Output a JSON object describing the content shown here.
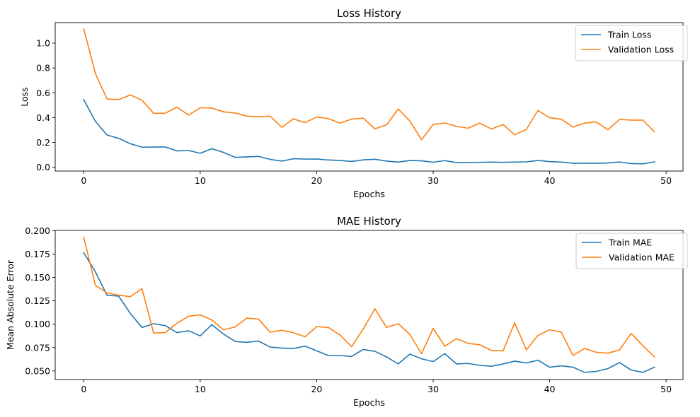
{
  "chart_data": [
    {
      "type": "line",
      "title": "Loss History",
      "xlabel": "Epochs",
      "ylabel": "Loss",
      "xlim": [
        -2.45,
        51.45
      ],
      "ylim": [
        -0.03,
        1.165
      ],
      "xticks": [
        0,
        10,
        20,
        30,
        40,
        50
      ],
      "yticks": [
        0.0,
        0.2,
        0.4,
        0.6,
        0.8,
        1.0
      ],
      "ytick_labels": [
        "0.0",
        "0.2",
        "0.4",
        "0.6",
        "0.8",
        "1.0"
      ],
      "grid": false,
      "legend_position": "top-right",
      "x": [
        0,
        1,
        2,
        3,
        4,
        5,
        6,
        7,
        8,
        9,
        10,
        11,
        12,
        13,
        14,
        15,
        16,
        17,
        18,
        19,
        20,
        21,
        22,
        23,
        24,
        25,
        26,
        27,
        28,
        29,
        30,
        31,
        32,
        33,
        34,
        35,
        36,
        37,
        38,
        39,
        40,
        41,
        42,
        43,
        44,
        45,
        46,
        47,
        48,
        49
      ],
      "series": [
        {
          "name": "Train Loss",
          "color": "#1f77b4",
          "values": [
            0.545,
            0.37,
            0.26,
            0.233,
            0.19,
            0.162,
            0.163,
            0.164,
            0.132,
            0.135,
            0.113,
            0.15,
            0.12,
            0.08,
            0.084,
            0.088,
            0.064,
            0.05,
            0.069,
            0.066,
            0.067,
            0.059,
            0.055,
            0.047,
            0.06,
            0.065,
            0.05,
            0.042,
            0.055,
            0.052,
            0.041,
            0.054,
            0.038,
            0.039,
            0.04,
            0.042,
            0.04,
            0.042,
            0.044,
            0.055,
            0.046,
            0.042,
            0.033,
            0.033,
            0.032,
            0.035,
            0.043,
            0.03,
            0.028,
            0.044
          ]
        },
        {
          "name": "Validation Loss",
          "color": "#ff7f0e",
          "values": [
            1.115,
            0.755,
            0.55,
            0.545,
            0.583,
            0.54,
            0.435,
            0.435,
            0.485,
            0.42,
            0.48,
            0.477,
            0.447,
            0.437,
            0.412,
            0.408,
            0.412,
            0.322,
            0.39,
            0.36,
            0.405,
            0.392,
            0.356,
            0.388,
            0.396,
            0.31,
            0.342,
            0.47,
            0.372,
            0.222,
            0.345,
            0.357,
            0.33,
            0.315,
            0.356,
            0.308,
            0.345,
            0.262,
            0.305,
            0.458,
            0.4,
            0.387,
            0.324,
            0.356,
            0.366,
            0.302,
            0.385,
            0.38,
            0.38,
            0.286
          ]
        }
      ]
    },
    {
      "type": "line",
      "title": "MAE History",
      "xlabel": "Epochs",
      "ylabel": "Mean Absolute Error",
      "xlim": [
        -2.45,
        51.45
      ],
      "ylim": [
        0.0408,
        0.2003
      ],
      "xticks": [
        0,
        10,
        20,
        30,
        40,
        50
      ],
      "yticks": [
        0.05,
        0.075,
        0.1,
        0.125,
        0.15,
        0.175,
        0.2
      ],
      "ytick_labels": [
        "0.050",
        "0.075",
        "0.100",
        "0.125",
        "0.150",
        "0.175",
        "0.200"
      ],
      "grid": false,
      "legend_position": "top-right",
      "x": [
        0,
        1,
        2,
        3,
        4,
        5,
        6,
        7,
        8,
        9,
        10,
        11,
        12,
        13,
        14,
        15,
        16,
        17,
        18,
        19,
        20,
        21,
        22,
        23,
        24,
        25,
        26,
        27,
        28,
        29,
        30,
        31,
        32,
        33,
        34,
        35,
        36,
        37,
        38,
        39,
        40,
        41,
        42,
        43,
        44,
        45,
        46,
        47,
        48,
        49
      ],
      "series": [
        {
          "name": "Train MAE",
          "color": "#1f77b4",
          "values": [
            0.1765,
            0.156,
            0.131,
            0.13,
            0.1115,
            0.0965,
            0.1005,
            0.0985,
            0.091,
            0.093,
            0.0875,
            0.0995,
            0.0895,
            0.0815,
            0.0805,
            0.082,
            0.0755,
            0.0745,
            0.074,
            0.0765,
            0.0715,
            0.0665,
            0.0665,
            0.0655,
            0.073,
            0.071,
            0.065,
            0.0575,
            0.068,
            0.063,
            0.06,
            0.0685,
            0.0575,
            0.058,
            0.056,
            0.055,
            0.0575,
            0.0605,
            0.0585,
            0.0615,
            0.054,
            0.0555,
            0.054,
            0.0485,
            0.0495,
            0.0525,
            0.059,
            0.051,
            0.0485,
            0.054
          ]
        },
        {
          "name": "Validation MAE",
          "color": "#ff7f0e",
          "values": [
            0.193,
            0.1415,
            0.1335,
            0.131,
            0.1295,
            0.138,
            0.0905,
            0.091,
            0.101,
            0.1085,
            0.11,
            0.1045,
            0.094,
            0.097,
            0.1065,
            0.1055,
            0.0915,
            0.0935,
            0.091,
            0.0865,
            0.0975,
            0.0965,
            0.0885,
            0.076,
            0.095,
            0.1165,
            0.0965,
            0.1005,
            0.089,
            0.0685,
            0.0955,
            0.0765,
            0.0845,
            0.0795,
            0.078,
            0.072,
            0.0715,
            0.1015,
            0.0725,
            0.088,
            0.094,
            0.0915,
            0.0665,
            0.074,
            0.07,
            0.069,
            0.0725,
            0.09,
            0.077,
            0.065
          ]
        }
      ]
    }
  ]
}
